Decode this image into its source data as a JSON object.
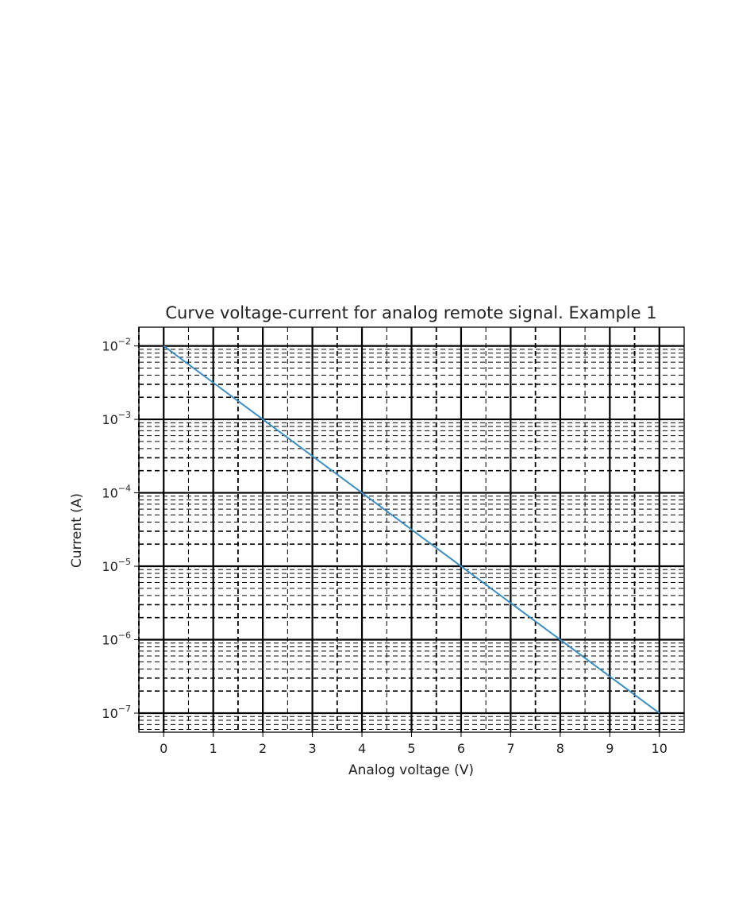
{
  "chart_data": {
    "type": "line",
    "title": "Curve voltage-current for analog remote signal. Example 1",
    "xlabel": "Analog voltage (V)",
    "ylabel": "Current (A)",
    "x_scale": "linear",
    "y_scale": "log",
    "xlim": [
      -0.5,
      10.5
    ],
    "ylim": [
      5.5e-08,
      0.018
    ],
    "x_ticks": [
      0,
      1,
      2,
      3,
      4,
      5,
      6,
      7,
      8,
      9,
      10
    ],
    "x_tick_labels": [
      "0",
      "1",
      "2",
      "3",
      "4",
      "5",
      "6",
      "7",
      "8",
      "9",
      "10"
    ],
    "y_ticks": [
      1e-07,
      1e-06,
      1e-05,
      0.0001,
      0.001,
      0.01
    ],
    "y_tick_labels": [
      {
        "base": "10",
        "exp": "−7"
      },
      {
        "base": "10",
        "exp": "−6"
      },
      {
        "base": "10",
        "exp": "−5"
      },
      {
        "base": "10",
        "exp": "−4"
      },
      {
        "base": "10",
        "exp": "−3"
      },
      {
        "base": "10",
        "exp": "−2"
      }
    ],
    "grid": {
      "major": "solid",
      "minor": "dashed"
    },
    "line_color": "#3b8ec2",
    "series": [
      {
        "x": [
          0,
          1,
          2,
          3,
          4,
          5,
          6,
          7,
          8,
          9,
          10
        ],
        "y": [
          0.01,
          0.00316,
          0.001,
          0.000316,
          0.0001,
          3.16e-05,
          1e-05,
          3.16e-06,
          1e-06,
          3.16e-07,
          1e-07
        ]
      }
    ]
  }
}
